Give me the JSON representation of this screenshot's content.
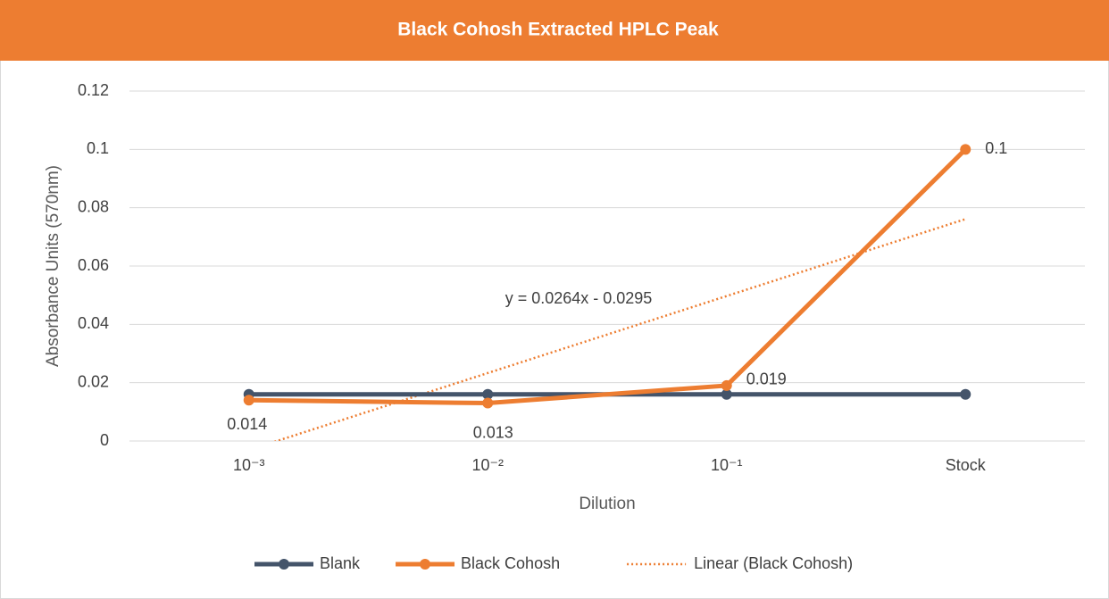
{
  "chart_data": {
    "type": "line",
    "title": "Black Cohosh Extracted HPLC Peak",
    "x_label": "Dilution",
    "y_label": "Absorbance Units (570nm)",
    "categories": [
      "10⁻³",
      "10⁻²",
      "10⁻¹",
      "Stock"
    ],
    "series": [
      {
        "name": "Blank",
        "color": "#44546a",
        "values": [
          0.016,
          0.016,
          0.016,
          0.016
        ]
      },
      {
        "name": "Black Cohosh",
        "color": "#ed7d31",
        "values": [
          0.014,
          0.013,
          0.019,
          0.1
        ],
        "data_labels": true
      }
    ],
    "trendline": {
      "name": "Linear (Black Cohosh)",
      "color": "#ed7d31",
      "series": 1,
      "equation": "y = 0.0264x - 0.0295"
    },
    "ylim": [
      0,
      0.12
    ],
    "yticks": [
      0,
      0.02,
      0.04,
      0.06,
      0.08,
      0.1,
      0.12
    ],
    "grid": true,
    "legend": "bottom"
  }
}
